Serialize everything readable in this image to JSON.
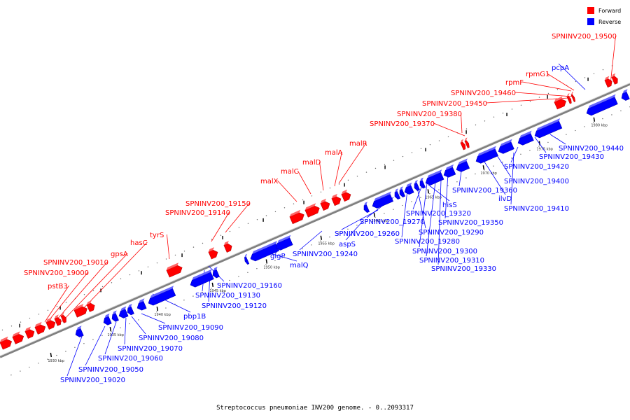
{
  "caption": "Streptococcus pneumoniae INV200 genome. - 0..2093317",
  "legend": {
    "items": [
      {
        "label": "Forward",
        "color": "#ff0000"
      },
      {
        "label": "Reverse",
        "color": "#0000ff"
      }
    ]
  },
  "colors": {
    "forward": "#ff0000",
    "reverse": "#0000ff",
    "backbone": "#808080",
    "label_line_forward": "#ff0000",
    "label_line_reverse": "#0000ff"
  },
  "scale": {
    "unit": "kbp",
    "ticks": [
      {
        "label": "1930 kbp"
      },
      {
        "label": "1935 kbp"
      },
      {
        "label": "1940 kbp"
      },
      {
        "label": "1945 kbp"
      },
      {
        "label": "1950 kbp"
      },
      {
        "label": "1955 kbp"
      },
      {
        "label": "1960 kbp"
      },
      {
        "label": "1965 kbp"
      },
      {
        "label": "1970 kbp"
      },
      {
        "label": "1975 kbp"
      },
      {
        "label": "1980 kbp"
      }
    ]
  },
  "forward_labels": [
    "pstB3",
    "SPNINV200_19000",
    "SPNINV200_19010",
    "gpsA",
    "hasC",
    "tyrS",
    "SPNINV200_19140",
    "SPNINV200_19150",
    "malX",
    "malC",
    "malD",
    "malA",
    "malR",
    "SPNINV200_19370",
    "SPNINV200_19380",
    "SPNINV200_19450",
    "SPNINV200_19460",
    "rpmF",
    "rpmG1",
    "SPNINV200_19500"
  ],
  "reverse_labels": [
    "SPNINV200_19020",
    "SPNINV200_19050",
    "SPNINV200_19060",
    "SPNINV200_19070",
    "SPNINV200_19080",
    "SPNINV200_19090",
    "pbp1B",
    "SPNINV200_19120",
    "SPNINV200_19130",
    "SPNINV200_19160",
    "glgP",
    "malQ",
    "SPNINV200_19240",
    "aspS",
    "SPNINV200_19260",
    "SPNINV200_19270",
    "SPNINV200_19280",
    "SPNINV200_19290",
    "SPNINV200_19300",
    "SPNINV200_19310",
    "SPNINV200_19320",
    "SPNINV200_19330",
    "hisS",
    "SPNINV200_19350",
    "SPNINV200_19360",
    "ilvD",
    "SPNINV200_19400",
    "SPNINV200_19410",
    "SPNINV200_19420",
    "SPNINV200_19430",
    "SPNINV200_19440",
    "pcpA"
  ]
}
